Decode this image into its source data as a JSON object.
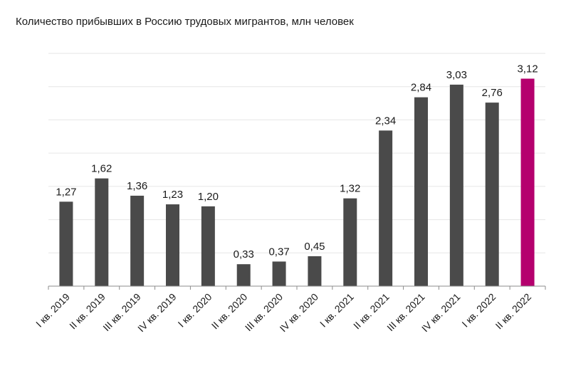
{
  "chart_data": {
    "type": "bar",
    "title": "Количество прибывших в Россию трудовых мигрантов, млн человек",
    "categories": [
      "I кв. 2019",
      "II кв. 2019",
      "III кв. 2019",
      "IV кв. 2019",
      "I кв. 2020",
      "II кв. 2020",
      "III кв. 2020",
      "IV кв. 2020",
      "I кв. 2021",
      "II кв. 2021",
      "III кв. 2021",
      "IV кв. 2021",
      "I кв. 2022",
      "II кв. 2022"
    ],
    "values": [
      1.27,
      1.62,
      1.36,
      1.23,
      1.2,
      0.33,
      0.37,
      0.45,
      1.32,
      2.34,
      2.84,
      3.03,
      2.76,
      3.12
    ],
    "value_labels": [
      "1,27",
      "1,62",
      "1,36",
      "1,23",
      "1,20",
      "0,33",
      "0,37",
      "0,45",
      "1,32",
      "2,34",
      "2,84",
      "3,03",
      "2,76",
      "3,12"
    ],
    "ylim": [
      0,
      3.5
    ],
    "grid_step": 0.5,
    "grid": true,
    "legend": "none",
    "colors": {
      "bar": "#4a4a4a",
      "highlight": "#b5006e",
      "grid": "#e6e6e6",
      "axis": "#8c8c8c"
    },
    "highlight_index": 13
  }
}
